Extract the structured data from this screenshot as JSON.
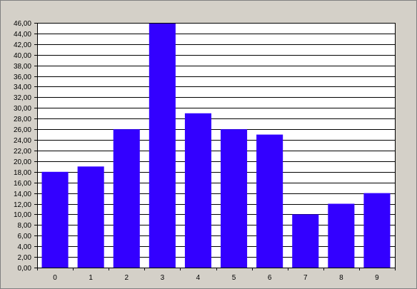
{
  "chart_data": {
    "type": "bar",
    "title": "",
    "xlabel": "",
    "ylabel": "",
    "categories": [
      "0",
      "1",
      "2",
      "3",
      "4",
      "5",
      "6",
      "7",
      "8",
      "9"
    ],
    "values": [
      18,
      19,
      26,
      46,
      29,
      26,
      25,
      10,
      12,
      14
    ],
    "ylim": [
      0,
      46
    ],
    "ytick_step": 2,
    "ytick_labels": [
      "0,00",
      "2,00",
      "4,00",
      "6,00",
      "8,00",
      "10,00",
      "12,00",
      "14,00",
      "16,00",
      "18,00",
      "20,00",
      "22,00",
      "24,00",
      "26,00",
      "28,00",
      "30,00",
      "32,00",
      "34,00",
      "36,00",
      "38,00",
      "40,00",
      "42,00",
      "44,00",
      "46,00"
    ],
    "grid": true,
    "legend": "none",
    "colors": {
      "bar": "#3300ff",
      "plot_background": "#ffffff",
      "chart_background": "#d4d0c8",
      "grid": "#000000"
    }
  }
}
